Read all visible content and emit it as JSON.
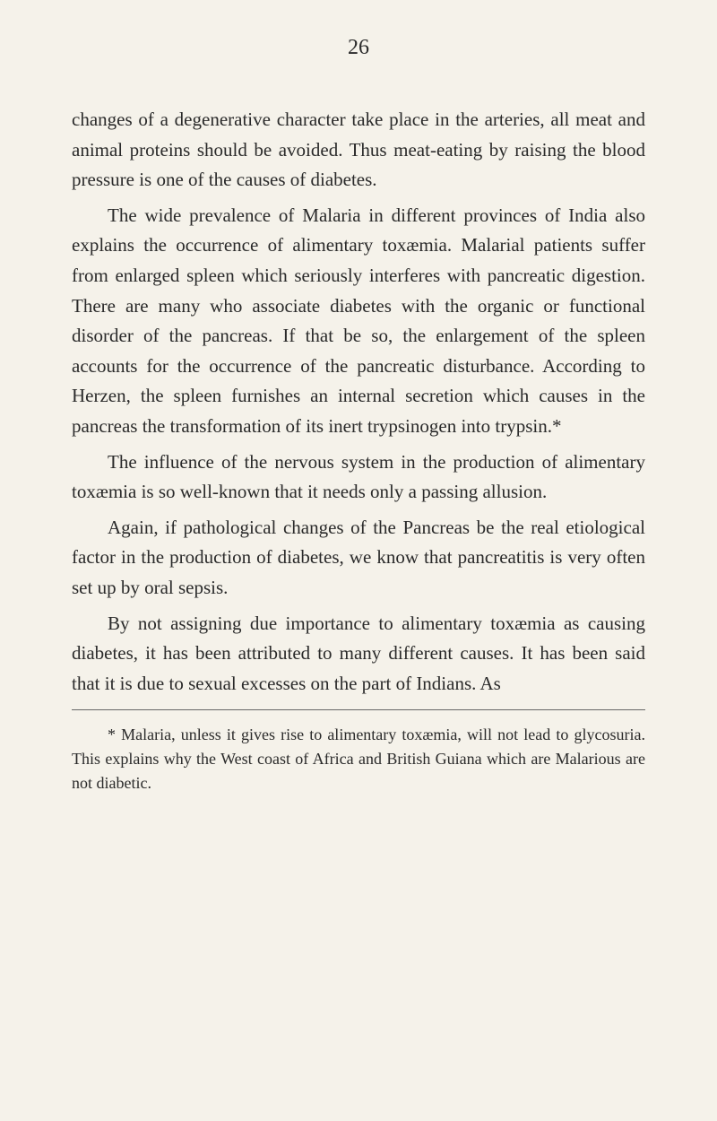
{
  "pageNumber": "26",
  "paragraphs": [
    {
      "text": "changes of a degenerative character take place in the arteries, all meat and animal proteins should be avoided. Thus meat-eating by raising the blood pressure is one of the causes of diabetes.",
      "indent": false
    },
    {
      "text": "The wide prevalence of Malaria in different provinces of India also explains the occurrence of alimentary toxæmia. Malarial patients suffer from enlarged spleen which seriously interferes with pancreatic digestion. There are many who associate diabetes with the organic or functional disorder of the pancreas. If that be so, the enlargement of the spleen accounts for the occurrence of the pancreatic disturbance. According to Herzen, the spleen furnishes an internal secretion which causes in the pancreas the transformation of its inert trypsinogen into trypsin.*",
      "indent": true
    },
    {
      "text": "The influence of the nervous system in the production of alimentary toxæmia is so well-known that it needs only a passing allusion.",
      "indent": true
    },
    {
      "text": "Again, if pathological changes of the Pancreas be the real etiological factor in the production of diabetes, we know that pancreatitis is very often set up by oral sepsis.",
      "indent": true
    },
    {
      "text": "By not assigning due importance to alimentary toxæmia as causing diabetes, it has been attributed to many different causes. It has been said that it is due to sexual excesses on the part of Indians. As",
      "indent": true
    }
  ],
  "footnote": "* Malaria, unless it gives rise to alimentary toxæmia, will not lead to glycosuria. This explains why the West coast of Africa and British Guiana which are Malarious are not diabetic.",
  "styling": {
    "backgroundColor": "#f5f2ea",
    "textColor": "#2a2a2a",
    "bodyFontSize": 21,
    "footnoteFontSize": 18,
    "pageNumberFontSize": 24,
    "lineHeight": 1.6,
    "textIndent": 40
  }
}
